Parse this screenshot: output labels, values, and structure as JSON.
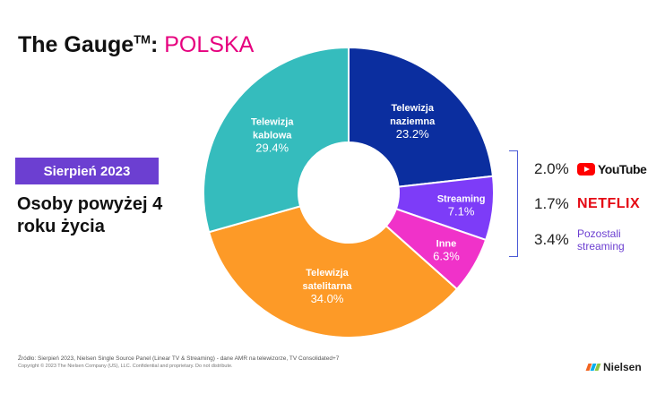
{
  "header": {
    "title_prefix": "The Gauge",
    "title_tm": "TM",
    "title_sep": ": ",
    "title_country": "POLSKA",
    "country_color": "#e6007e"
  },
  "left_panel": {
    "date_badge": "Sierpień 2023",
    "badge_color": "#6c3fd1",
    "audience": "Osoby powyżej 4 roku życia"
  },
  "chart_data": {
    "type": "pie",
    "categories": [
      "Telewizja naziemna",
      "Streaming",
      "Inne",
      "Telewizja satelitarna",
      "Telewizja kablowa"
    ],
    "values": [
      23.2,
      7.1,
      6.3,
      34.0,
      29.4
    ],
    "labels": [
      "Telewizja naziemna",
      "Streaming",
      "Inne",
      "Telewizja satelitarna",
      "Telewizja kablowa"
    ],
    "value_labels": [
      "23.2%",
      "7.1%",
      "6.3%",
      "34.0%",
      "29.4%"
    ],
    "colors": [
      "#0b2e9f",
      "#7d3cf8",
      "#f032c9",
      "#fd9a27",
      "#35bcbd"
    ],
    "unit": "%",
    "title": "",
    "legend": "none"
  },
  "streaming_breakdown": {
    "bracket_color": "#4b5bd6",
    "items": [
      {
        "value": "2.0%",
        "service": "YouTube",
        "logo_color": "#ff0000"
      },
      {
        "value": "1.7%",
        "service": "NETFLIX",
        "logo_color": "#e50914"
      },
      {
        "value": "3.4%",
        "service_line1": "Pozostali",
        "service_line2": "streaming",
        "text_color": "#6c3fd1"
      }
    ]
  },
  "footer": {
    "source": "Źródło: Sierpień  2023, Nielsen Single Source Panel (Linear TV & Streaming) - dane AMR na telewizorze, TV Consolidated+7",
    "copyright": "Copyright © 2023 The Nielsen Company (US), LLC. Confidential and proprietary. Do not distribute.",
    "brand": "Nielsen",
    "brand_colors": [
      "#f26522",
      "#00aeef",
      "#8dc63f"
    ]
  }
}
